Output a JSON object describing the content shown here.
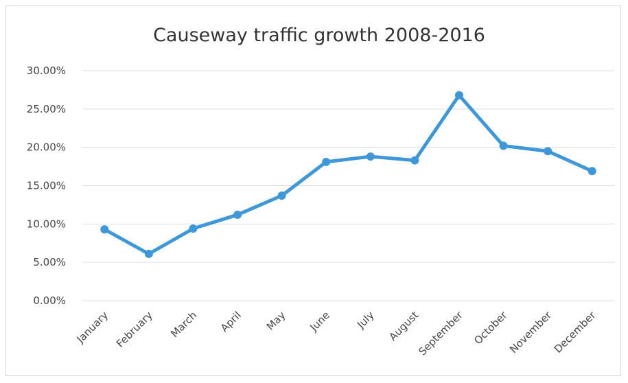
{
  "chart_data": {
    "type": "line",
    "title": "Causeway traffic growth 2008-2016",
    "xlabel": "",
    "ylabel": "",
    "categories": [
      "January",
      "February",
      "March",
      "April",
      "May",
      "June",
      "July",
      "August",
      "September",
      "October",
      "November",
      "December"
    ],
    "series": [
      {
        "values": [
          9.3,
          6.1,
          9.4,
          11.2,
          13.7,
          18.1,
          18.8,
          18.3,
          26.8,
          20.2,
          19.5,
          16.9
        ],
        "color": "#3d97d8"
      }
    ],
    "ylim": [
      0,
      30
    ],
    "yticks": [
      0,
      5,
      10,
      15,
      20,
      25,
      30
    ],
    "ytick_labels": [
      "0.00%",
      "5.00%",
      "10.00%",
      "15.00%",
      "20.00%",
      "25.00%",
      "30.00%"
    ],
    "grid": true,
    "legend": "none"
  }
}
